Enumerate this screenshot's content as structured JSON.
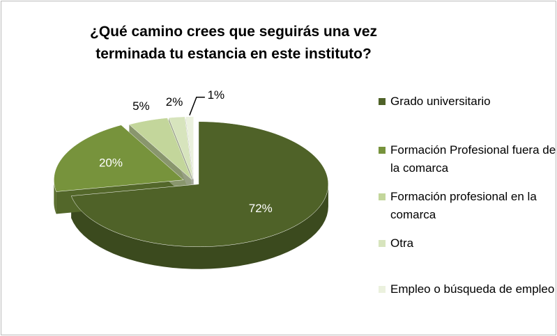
{
  "chart_data": {
    "type": "pie3d",
    "title": "¿Qué camino crees que seguirás una vez terminada tu estancia en este instituto?",
    "categories": [
      "Grado universitario",
      "Formación Profesional fuera de la comarca",
      "Formación profesional en la comarca",
      "Otra",
      "Empleo o búsqueda de empleo"
    ],
    "values": [
      72,
      20,
      5,
      2,
      1
    ],
    "value_labels": [
      "72%",
      "20%",
      "5%",
      "2%",
      "1%"
    ],
    "colors": [
      "#4f6228",
      "#77933c",
      "#c3d69b",
      "#d7e4bd",
      "#ebf1de"
    ],
    "legend": "right"
  }
}
